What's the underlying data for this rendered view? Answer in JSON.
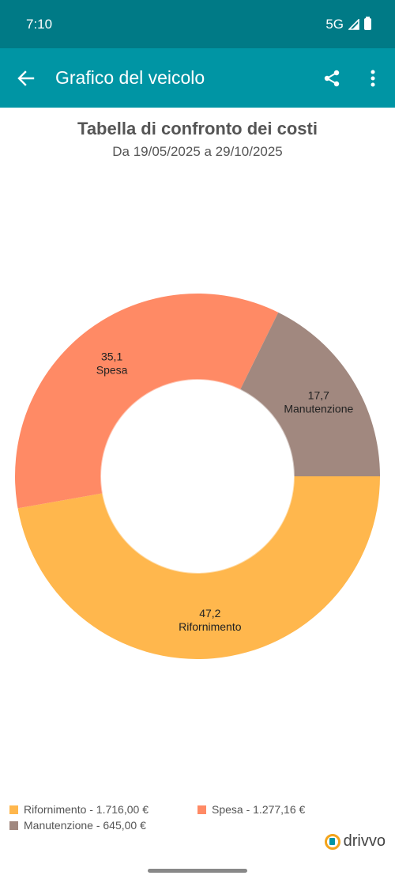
{
  "status_bar": {
    "time": "7:10",
    "network": "5G"
  },
  "app_bar": {
    "title": "Grafico del veicolo",
    "back_icon": "arrow-back-icon",
    "share_icon": "share-icon",
    "more_icon": "more-vert-icon"
  },
  "chart_data": {
    "type": "pie",
    "title": "Tabella di confronto dei costi",
    "subtitle": "Da 19/05/2025 a 29/10/2025",
    "donut": true,
    "slices": [
      {
        "name": "Rifornimento",
        "value": 47.2,
        "value_label": "47,2",
        "amount": "1.716,00 €",
        "color": "#ffb74d"
      },
      {
        "name": "Spesa",
        "value": 35.1,
        "value_label": "35,1",
        "amount": "1.277,16 €",
        "color": "#ff8a65"
      },
      {
        "name": "Manutenzione",
        "value": 17.7,
        "value_label": "17,7",
        "amount": "645,00 €",
        "color": "#a1887f"
      }
    ],
    "legend": [
      "Rifornimento - 1.716,00 €",
      "Spesa - 1.277,16 €",
      "Manutenzione - 645,00 €"
    ],
    "legend_placement": "bottom-left"
  },
  "brand": {
    "name": "drivvo"
  }
}
